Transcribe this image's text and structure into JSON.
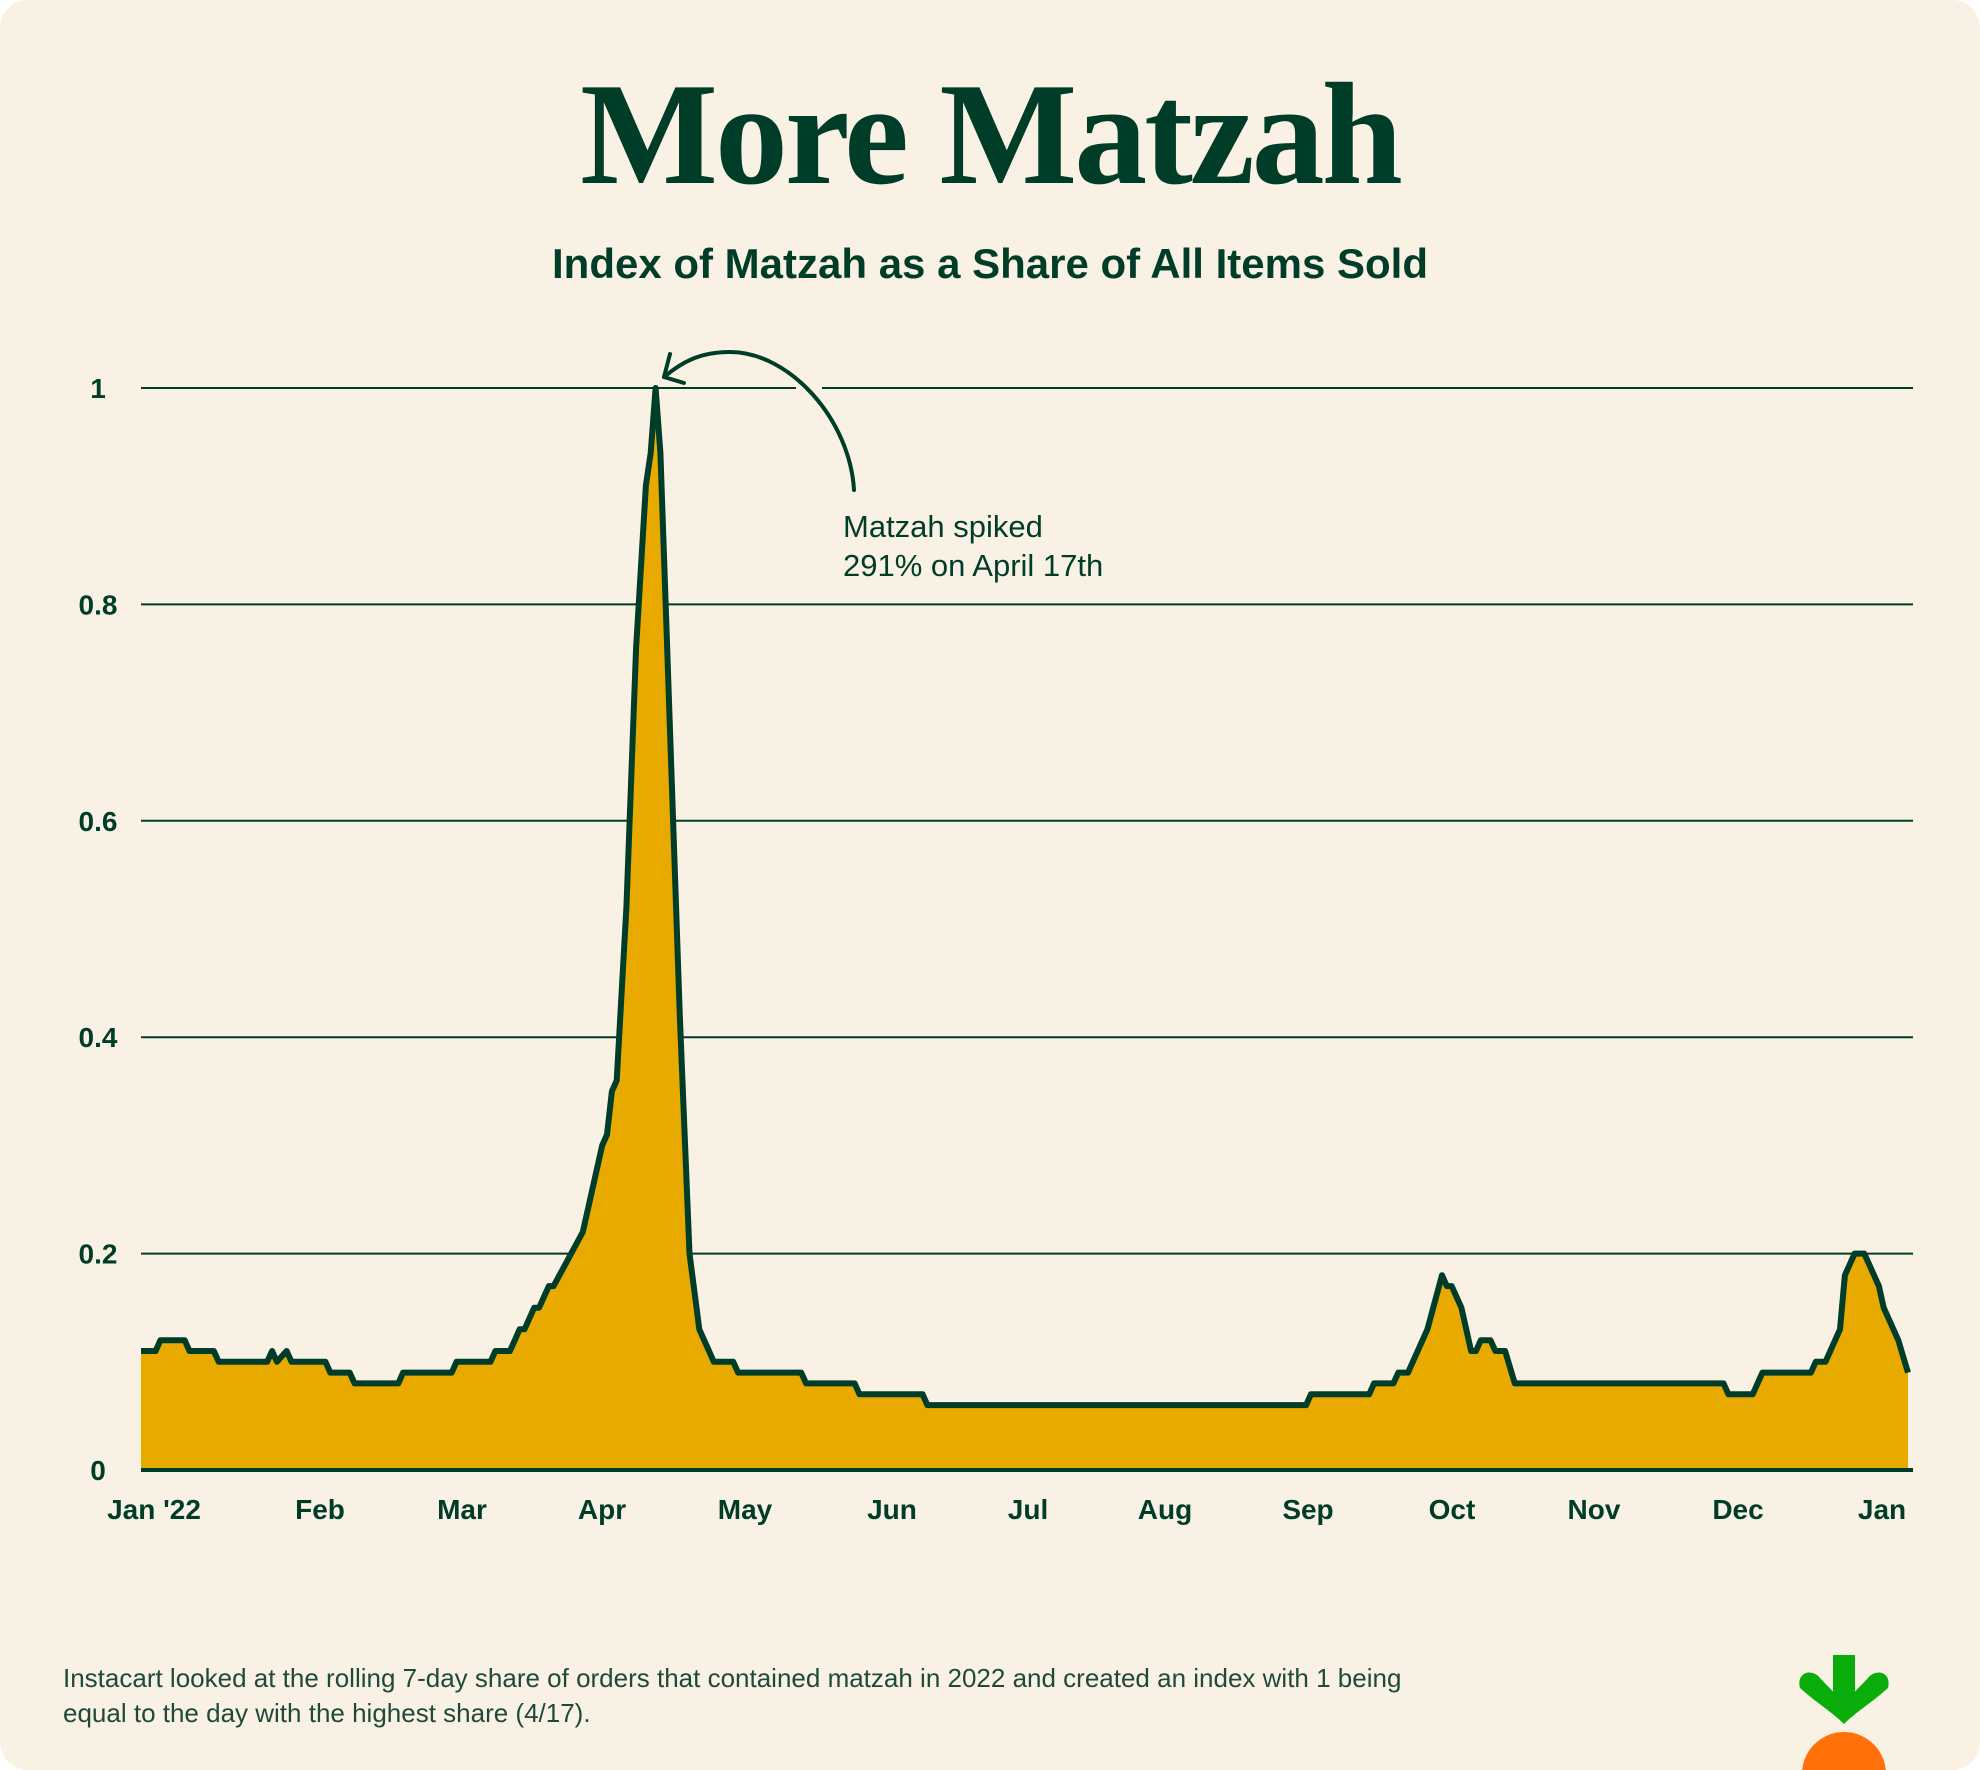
{
  "title": "More Matzah",
  "subtitle": "Index of Matzah as a Share of All Items Sold",
  "annotation": {
    "line1": "Matzah spiked",
    "line2": "291% on April 17th"
  },
  "footnote": {
    "line1": "Instacart looked at the rolling 7-day share of orders that contained matzah in 2022 and created an index with 1 being",
    "line2": "equal to the day with the highest share (4/17)."
  },
  "logo": {
    "icon": "carrot-icon",
    "leaf_color": "#0aad0a",
    "carrot_color": "#ff7009"
  },
  "colors": {
    "background": "#f9f1e4",
    "line": "#003d29",
    "fill": "#e9aa00",
    "grid": "#003d29"
  },
  "chart_data": {
    "type": "area",
    "title": "Index of Matzah as a Share of All Items Sold",
    "xlabel": "",
    "ylabel": "",
    "ylim": [
      0,
      1
    ],
    "xlim": [
      "2022-01-01",
      "2022-12-31"
    ],
    "grid": "horizontal",
    "y_ticks": [
      "0",
      "0.2",
      "0.4",
      "0.6",
      "0.8",
      "1"
    ],
    "x_ticks": [
      "Jan '22",
      "Feb",
      "Mar",
      "Apr",
      "May",
      "Jun",
      "Jul",
      "Aug",
      "Sep",
      "Oct",
      "Nov",
      "Dec",
      "Jan"
    ],
    "series": [
      {
        "points": [
          [
            "2022-01-01",
            0.11
          ],
          [
            "2022-01-04",
            0.11
          ],
          [
            "2022-01-05",
            0.12
          ],
          [
            "2022-01-10",
            0.12
          ],
          [
            "2022-01-11",
            0.11
          ],
          [
            "2022-01-16",
            0.11
          ],
          [
            "2022-01-17",
            0.1
          ],
          [
            "2022-01-27",
            0.1
          ],
          [
            "2022-01-28",
            0.11
          ],
          [
            "2022-01-29",
            0.1
          ],
          [
            "2022-01-31",
            0.11
          ],
          [
            "2022-02-01",
            0.1
          ],
          [
            "2022-02-08",
            0.1
          ],
          [
            "2022-02-09",
            0.09
          ],
          [
            "2022-02-13",
            0.09
          ],
          [
            "2022-02-14",
            0.08
          ],
          [
            "2022-02-23",
            0.08
          ],
          [
            "2022-02-24",
            0.09
          ],
          [
            "2022-03-06",
            0.09
          ],
          [
            "2022-03-07",
            0.1
          ],
          [
            "2022-03-14",
            0.1
          ],
          [
            "2022-03-15",
            0.11
          ],
          [
            "2022-03-18",
            0.11
          ],
          [
            "2022-03-19",
            0.12
          ],
          [
            "2022-03-20",
            0.13
          ],
          [
            "2022-03-21",
            0.13
          ],
          [
            "2022-03-23",
            0.15
          ],
          [
            "2022-03-24",
            0.15
          ],
          [
            "2022-03-26",
            0.17
          ],
          [
            "2022-03-27",
            0.17
          ],
          [
            "2022-04-02",
            0.22
          ],
          [
            "2022-04-06",
            0.3
          ],
          [
            "2022-04-07",
            0.31
          ],
          [
            "2022-04-08",
            0.35
          ],
          [
            "2022-04-09",
            0.36
          ],
          [
            "2022-04-11",
            0.52
          ],
          [
            "2022-04-13",
            0.76
          ],
          [
            "2022-04-15",
            0.91
          ],
          [
            "2022-04-16",
            0.94
          ],
          [
            "2022-04-17",
            1.0
          ],
          [
            "2022-04-18",
            0.94
          ],
          [
            "2022-04-19",
            0.81
          ],
          [
            "2022-04-22",
            0.42
          ],
          [
            "2022-04-24",
            0.2
          ],
          [
            "2022-04-26",
            0.13
          ],
          [
            "2022-04-28",
            0.11
          ],
          [
            "2022-04-29",
            0.1
          ],
          [
            "2022-05-03",
            0.1
          ],
          [
            "2022-05-04",
            0.09
          ],
          [
            "2022-05-17",
            0.09
          ],
          [
            "2022-05-18",
            0.08
          ],
          [
            "2022-05-28",
            0.08
          ],
          [
            "2022-05-29",
            0.07
          ],
          [
            "2022-06-11",
            0.07
          ],
          [
            "2022-06-12",
            0.06
          ],
          [
            "2022-08-29",
            0.06
          ],
          [
            "2022-08-30",
            0.07
          ],
          [
            "2022-09-11",
            0.07
          ],
          [
            "2022-09-12",
            0.08
          ],
          [
            "2022-09-16",
            0.08
          ],
          [
            "2022-09-17",
            0.09
          ],
          [
            "2022-09-19",
            0.09
          ],
          [
            "2022-09-23",
            0.13
          ],
          [
            "2022-09-26",
            0.18
          ],
          [
            "2022-09-27",
            0.17
          ],
          [
            "2022-09-28",
            0.17
          ],
          [
            "2022-09-30",
            0.15
          ],
          [
            "2022-10-02",
            0.11
          ],
          [
            "2022-10-03",
            0.11
          ],
          [
            "2022-10-04",
            0.12
          ],
          [
            "2022-10-06",
            0.12
          ],
          [
            "2022-10-07",
            0.11
          ],
          [
            "2022-10-09",
            0.11
          ],
          [
            "2022-10-11",
            0.08
          ],
          [
            "2022-11-23",
            0.08
          ],
          [
            "2022-11-24",
            0.07
          ],
          [
            "2022-11-29",
            0.07
          ],
          [
            "2022-12-01",
            0.09
          ],
          [
            "2022-12-11",
            0.09
          ],
          [
            "2022-12-12",
            0.1
          ],
          [
            "2022-12-14",
            0.1
          ],
          [
            "2022-12-15",
            0.11
          ],
          [
            "2022-12-17",
            0.13
          ],
          [
            "2022-12-18",
            0.18
          ],
          [
            "2022-12-20",
            0.2
          ],
          [
            "2022-12-22",
            0.2
          ],
          [
            "2022-12-25",
            0.17
          ],
          [
            "2022-12-26",
            0.15
          ],
          [
            "2022-12-29",
            0.12
          ],
          [
            "2022-12-31",
            0.09
          ]
        ]
      }
    ],
    "annotations": [
      {
        "date": "2022-04-17",
        "text": "Matzah spiked 291% on April 17th"
      }
    ]
  }
}
